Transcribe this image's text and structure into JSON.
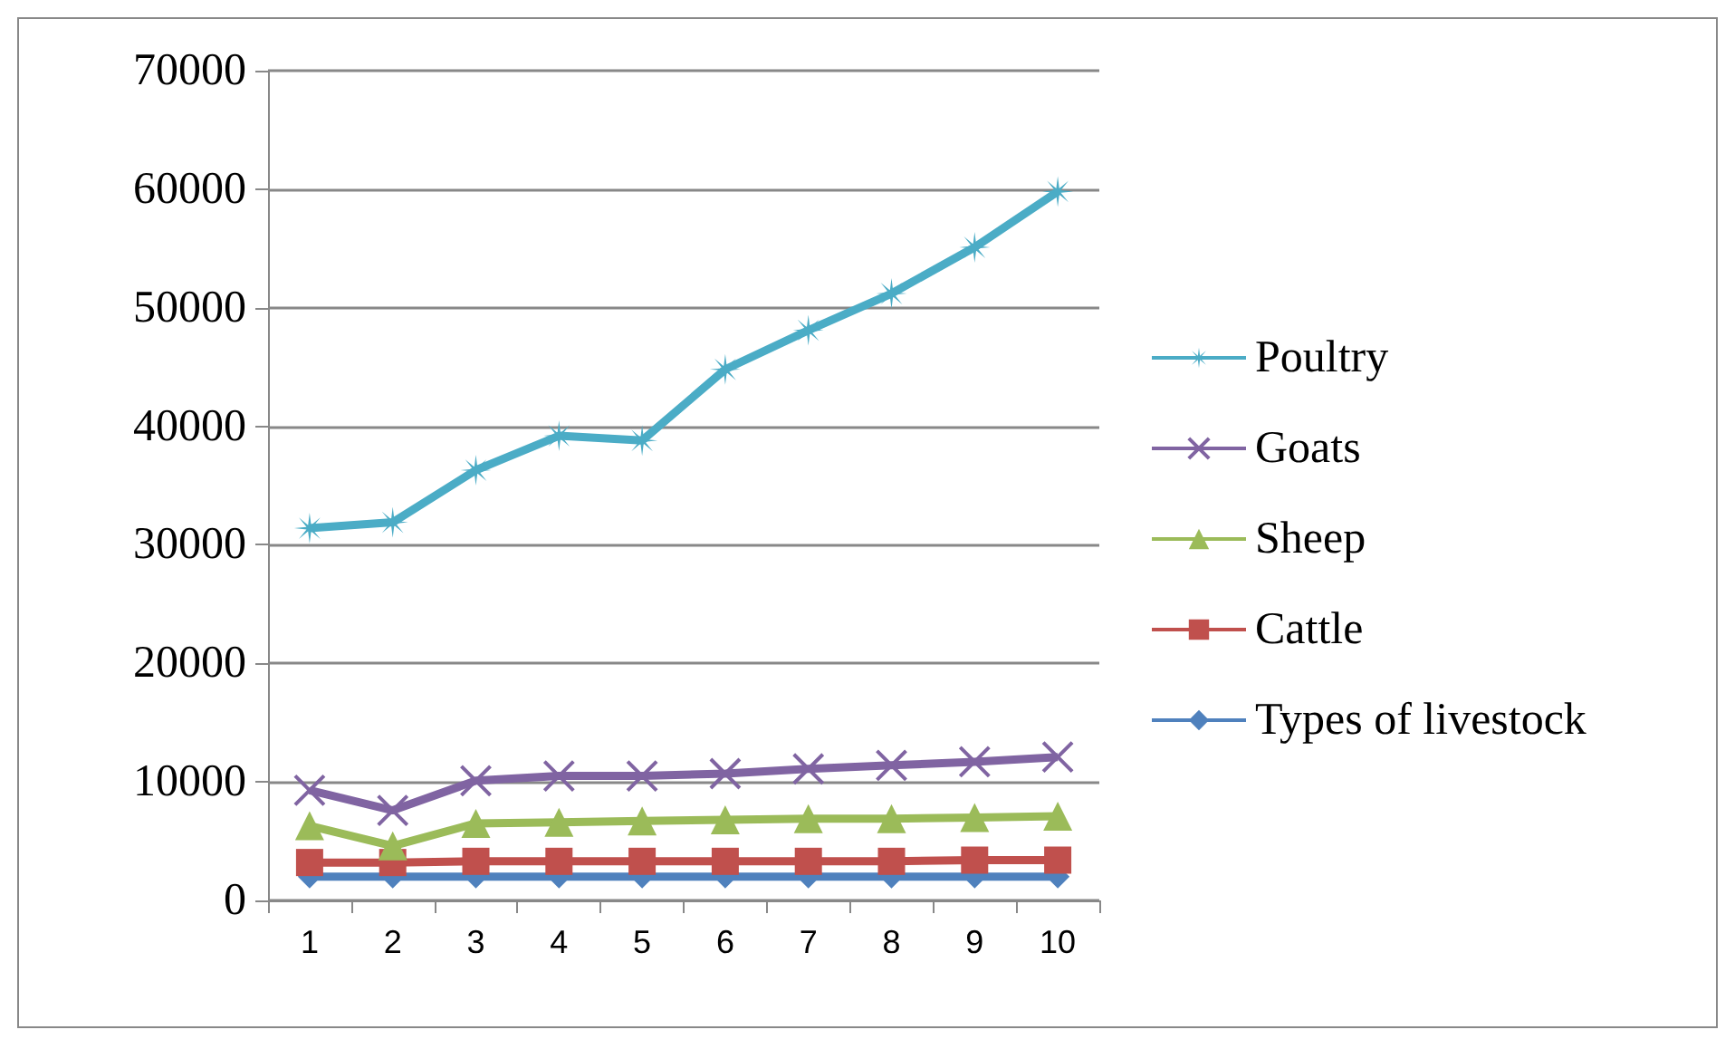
{
  "chart_data": {
    "type": "line",
    "categories": [
      "1",
      "2",
      "3",
      "4",
      "5",
      "6",
      "7",
      "8",
      "9",
      "10"
    ],
    "series": [
      {
        "name": "Poultry",
        "color": "#4bacc6",
        "marker": "star",
        "values": [
          31400,
          31900,
          36300,
          39200,
          38800,
          44800,
          48100,
          51200,
          55100,
          59800
        ]
      },
      {
        "name": "Goats",
        "color": "#8064a2",
        "marker": "cross",
        "values": [
          9300,
          7600,
          10100,
          10500,
          10500,
          10700,
          11100,
          11400,
          11700,
          12100
        ]
      },
      {
        "name": "Sheep",
        "color": "#9bbb59",
        "marker": "triangle",
        "values": [
          6300,
          4600,
          6500,
          6600,
          6700,
          6800,
          6900,
          6900,
          7000,
          7100
        ]
      },
      {
        "name": "Cattle",
        "color": "#c0504d",
        "marker": "square",
        "values": [
          3200,
          3200,
          3300,
          3300,
          3300,
          3300,
          3300,
          3300,
          3400,
          3400
        ]
      },
      {
        "name": "Types of livestock",
        "color": "#4f81bd",
        "marker": "diamond",
        "values": [
          2000,
          2000,
          2000,
          2000,
          2000,
          2000,
          2000,
          2000,
          2000,
          2000
        ]
      }
    ],
    "ylim": [
      0,
      70000
    ],
    "yticks": [
      0,
      10000,
      20000,
      30000,
      40000,
      50000,
      60000,
      70000
    ],
    "grid": "y",
    "legend": "right"
  }
}
